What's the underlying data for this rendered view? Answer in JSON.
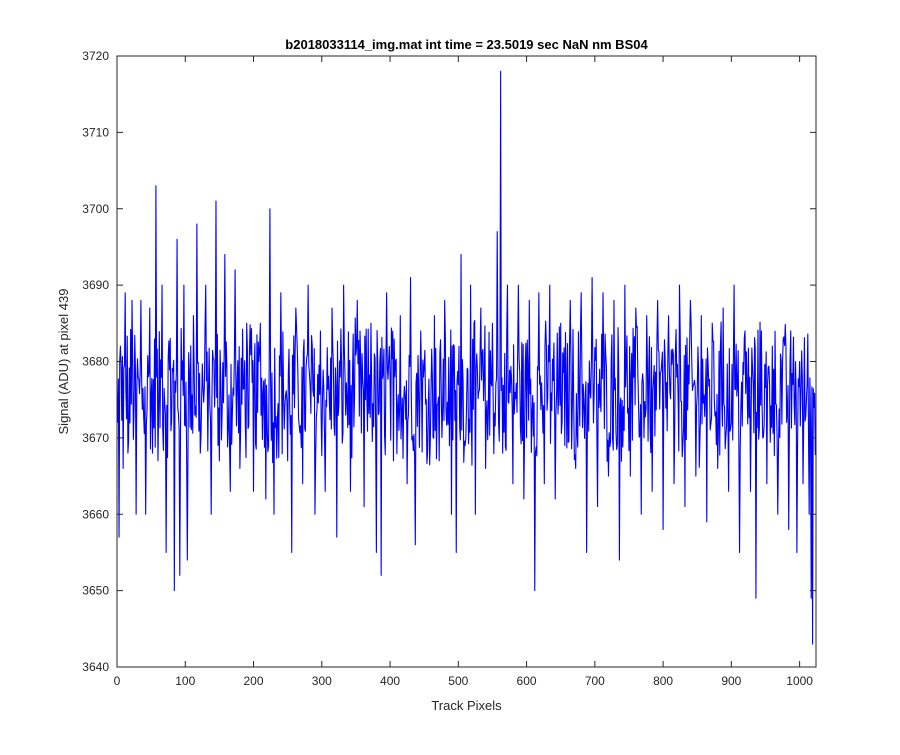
{
  "chart_data": {
    "type": "line",
    "title": "b2018033114_img.mat int time = 23.5019 sec  NaN nm BS04",
    "xlabel": "Track Pixels",
    "ylabel": "Signal (ADU) at pixel 439",
    "xlim": [
      0,
      1024
    ],
    "ylim": [
      3640,
      3720
    ],
    "xticks": [
      0,
      100,
      200,
      300,
      400,
      500,
      600,
      700,
      800,
      900,
      1000
    ],
    "yticks": [
      3640,
      3650,
      3660,
      3670,
      3680,
      3690,
      3700,
      3710,
      3720
    ],
    "grid": false,
    "legend": "none",
    "series": [
      {
        "color": "#0000ff",
        "baseline": 3676,
        "noise_amplitude": 8,
        "x_start": 1,
        "x_end": 1024,
        "points": [
          [
            1,
            3672
          ],
          [
            3,
            3657
          ],
          [
            5,
            3682
          ],
          [
            9,
            3666
          ],
          [
            12,
            3689
          ],
          [
            16,
            3668
          ],
          [
            22,
            3688
          ],
          [
            28,
            3660
          ],
          [
            35,
            3688
          ],
          [
            42,
            3660
          ],
          [
            48,
            3687
          ],
          [
            52,
            3668
          ],
          [
            57,
            3703
          ],
          [
            60,
            3667
          ],
          [
            66,
            3690
          ],
          [
            72,
            3655
          ],
          [
            78,
            3683
          ],
          [
            84,
            3650
          ],
          [
            88,
            3696
          ],
          [
            92,
            3652
          ],
          [
            98,
            3690
          ],
          [
            103,
            3654
          ],
          [
            112,
            3686
          ],
          [
            117,
            3698
          ],
          [
            122,
            3668
          ],
          [
            130,
            3690
          ],
          [
            138,
            3660
          ],
          [
            145,
            3701
          ],
          [
            150,
            3667
          ],
          [
            158,
            3694
          ],
          [
            166,
            3663
          ],
          [
            173,
            3692
          ],
          [
            180,
            3666
          ],
          [
            190,
            3685
          ],
          [
            200,
            3663
          ],
          [
            210,
            3685
          ],
          [
            218,
            3662
          ],
          [
            224,
            3700
          ],
          [
            230,
            3660
          ],
          [
            240,
            3689
          ],
          [
            250,
            3667
          ],
          [
            256,
            3655
          ],
          [
            262,
            3687
          ],
          [
            272,
            3664
          ],
          [
            280,
            3690
          ],
          [
            290,
            3660
          ],
          [
            298,
            3684
          ],
          [
            305,
            3663
          ],
          [
            315,
            3687
          ],
          [
            322,
            3657
          ],
          [
            332,
            3690
          ],
          [
            342,
            3663
          ],
          [
            352,
            3688
          ],
          [
            362,
            3661
          ],
          [
            372,
            3685
          ],
          [
            380,
            3655
          ],
          [
            387,
            3652
          ],
          [
            395,
            3689
          ],
          [
            405,
            3667
          ],
          [
            415,
            3686
          ],
          [
            425,
            3664
          ],
          [
            430,
            3691
          ],
          [
            437,
            3656
          ],
          [
            445,
            3684
          ],
          [
            455,
            3668
          ],
          [
            465,
            3686
          ],
          [
            472,
            3667
          ],
          [
            480,
            3688
          ],
          [
            490,
            3660
          ],
          [
            497,
            3655
          ],
          [
            504,
            3694
          ],
          [
            510,
            3669
          ],
          [
            518,
            3690
          ],
          [
            525,
            3660
          ],
          [
            533,
            3687
          ],
          [
            540,
            3666
          ],
          [
            550,
            3685
          ],
          [
            557,
            3697
          ],
          [
            559,
            3672
          ],
          [
            562,
            3718
          ],
          [
            565,
            3668
          ],
          [
            572,
            3690
          ],
          [
            580,
            3664
          ],
          [
            588,
            3690
          ],
          [
            596,
            3662
          ],
          [
            604,
            3688
          ],
          [
            612,
            3650
          ],
          [
            618,
            3689
          ],
          [
            626,
            3664
          ],
          [
            634,
            3690
          ],
          [
            642,
            3662
          ],
          [
            650,
            3685
          ],
          [
            656,
            3669
          ],
          [
            664,
            3688
          ],
          [
            672,
            3666
          ],
          [
            680,
            3689
          ],
          [
            688,
            3655
          ],
          [
            696,
            3691
          ],
          [
            704,
            3661
          ],
          [
            712,
            3689
          ],
          [
            720,
            3665
          ],
          [
            728,
            3688
          ],
          [
            736,
            3654
          ],
          [
            744,
            3690
          ],
          [
            752,
            3665
          ],
          [
            760,
            3687
          ],
          [
            768,
            3660
          ],
          [
            776,
            3686
          ],
          [
            784,
            3663
          ],
          [
            792,
            3688
          ],
          [
            800,
            3658
          ],
          [
            808,
            3686
          ],
          [
            816,
            3664
          ],
          [
            824,
            3690
          ],
          [
            832,
            3661
          ],
          [
            840,
            3688
          ],
          [
            848,
            3665
          ],
          [
            856,
            3686
          ],
          [
            864,
            3659
          ],
          [
            872,
            3685
          ],
          [
            880,
            3666
          ],
          [
            888,
            3687
          ],
          [
            896,
            3663
          ],
          [
            904,
            3690
          ],
          [
            912,
            3655
          ],
          [
            920,
            3684
          ],
          [
            928,
            3663
          ],
          [
            936,
            3649
          ],
          [
            944,
            3684
          ],
          [
            952,
            3664
          ],
          [
            960,
            3682
          ],
          [
            968,
            3660
          ],
          [
            976,
            3683
          ],
          [
            984,
            3658
          ],
          [
            990,
            3677
          ],
          [
            996,
            3655
          ],
          [
            1000,
            3680
          ],
          [
            1005,
            3664
          ],
          [
            1010,
            3675
          ],
          [
            1014,
            3660
          ],
          [
            1017,
            3649
          ],
          [
            1019,
            3643
          ],
          [
            1021,
            3674
          ],
          [
            1024,
            3668
          ]
        ]
      }
    ]
  }
}
